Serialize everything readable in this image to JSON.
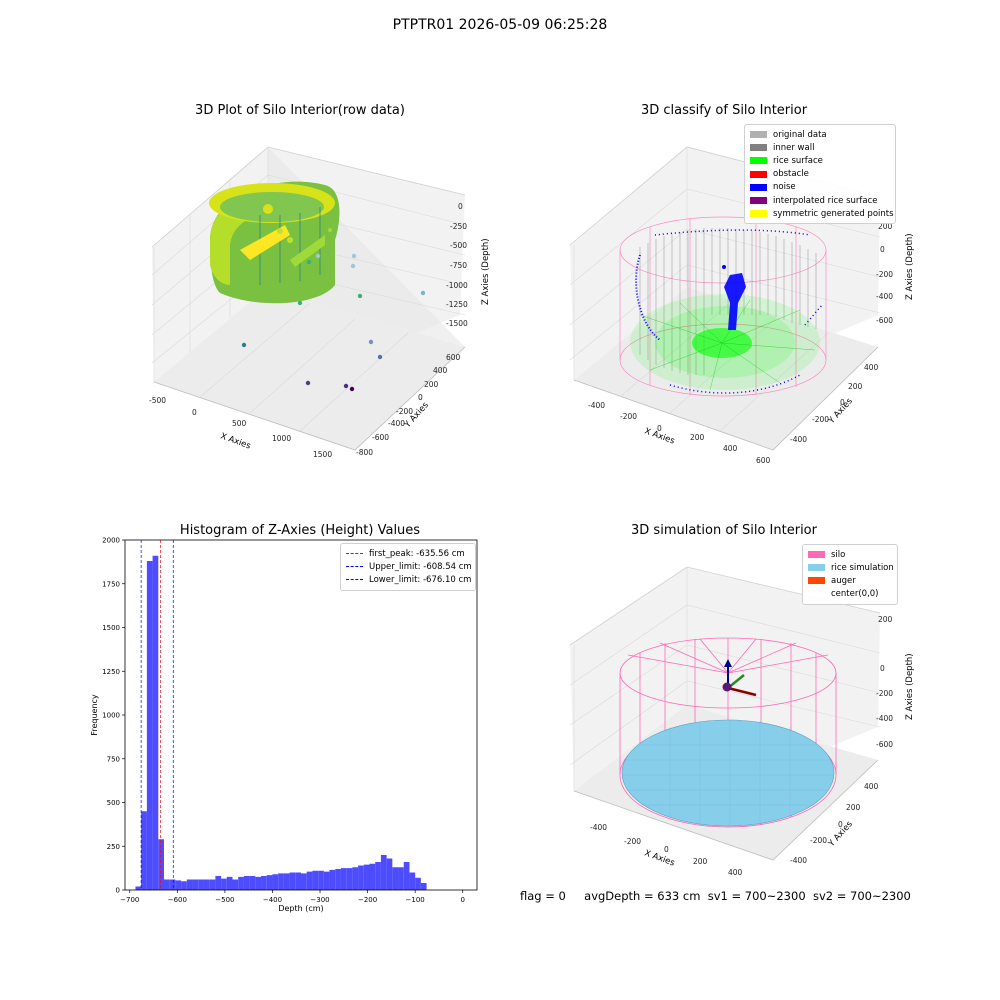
{
  "suptitle": "PTPTR01 2026-05-09 06:25:28",
  "colors": {
    "viridis_low": "#440154",
    "viridis_mid": "#21918c",
    "viridis_high": "#fde725",
    "pink": "#ff69b4",
    "green": "#00ff00",
    "blue": "#0000ff",
    "hist": "#4d4dff",
    "sky": "#87ceeb",
    "auger": "#ff4500"
  },
  "raw_plot": {
    "title": "3D Plot of Silo Interior(row data)",
    "x_label": "X Axies",
    "y_label": "Y Axies",
    "z_label": "Z Axies (Depth)",
    "x_ticks": [
      "-500",
      "0",
      "500",
      "1000",
      "1500"
    ],
    "y_ticks": [
      "600",
      "400",
      "200",
      "0",
      "-200",
      "-400",
      "-600",
      "-800"
    ],
    "z_ticks": [
      "0",
      "-250",
      "-500",
      "-750",
      "-1000",
      "-1250",
      "-1500"
    ]
  },
  "classify_plot": {
    "title": "3D classify of Silo Interior",
    "x_label": "X Axies",
    "y_label": "Y Axies",
    "z_label": "Z Axies (Depth)",
    "x_ticks": [
      "-400",
      "-200",
      "0",
      "200",
      "400",
      "600"
    ],
    "y_ticks": [
      "400",
      "200",
      "0",
      "-200",
      "-400"
    ],
    "z_ticks": [
      "200",
      "0",
      "-200",
      "-400",
      "-600"
    ],
    "legend": [
      {
        "label": "original data",
        "color": "#b0b0b0"
      },
      {
        "label": "inner wall",
        "color": "#808080"
      },
      {
        "label": "rice surface",
        "color": "#00ff00"
      },
      {
        "label": "obstacle",
        "color": "#ff0000"
      },
      {
        "label": "noise",
        "color": "#0000ff"
      },
      {
        "label": "interpolated rice surface",
        "color": "#800080"
      },
      {
        "label": "symmetric generated points",
        "color": "#ffff00"
      }
    ]
  },
  "chart_data": {
    "type": "bar",
    "title": "Histogram of Z-Axies (Height) Values",
    "xlabel": "Depth (cm)",
    "ylabel": "Frequency",
    "xlim": [
      -710,
      30
    ],
    "ylim": [
      0,
      2000
    ],
    "x_ticks": [
      -700,
      -600,
      -500,
      -400,
      -300,
      -200,
      -100,
      0
    ],
    "y_ticks": [
      0,
      250,
      500,
      750,
      1000,
      1250,
      1500,
      1750,
      2000
    ],
    "bin_width": 12,
    "bin_starts": [
      -688,
      -676,
      -664,
      -652,
      -640,
      -628,
      -616,
      -604,
      -592,
      -580,
      -568,
      -556,
      -544,
      -532,
      -520,
      -508,
      -496,
      -484,
      -472,
      -460,
      -448,
      -436,
      -424,
      -412,
      -400,
      -388,
      -376,
      -364,
      -352,
      -340,
      -328,
      -316,
      -304,
      -292,
      -280,
      -268,
      -256,
      -244,
      -232,
      -220,
      -208,
      -196,
      -184,
      -172,
      -160,
      -148,
      -136,
      -124,
      -112,
      -100,
      -88,
      -76,
      -64,
      -52,
      -40,
      -28,
      -16
    ],
    "values": [
      20,
      450,
      1880,
      1910,
      290,
      60,
      60,
      55,
      50,
      60,
      60,
      60,
      60,
      60,
      80,
      65,
      75,
      60,
      75,
      80,
      80,
      75,
      80,
      85,
      90,
      95,
      95,
      100,
      100,
      95,
      105,
      110,
      110,
      105,
      115,
      120,
      125,
      125,
      130,
      140,
      145,
      150,
      160,
      200,
      180,
      130,
      130,
      160,
      100,
      70,
      40,
      0,
      0,
      0,
      0,
      0,
      0
    ],
    "vlines": [
      {
        "label": "first_peak: -635.56 cm",
        "value": -635.56,
        "color": "#ff0000"
      },
      {
        "label": "Upper_limit: -608.54 cm",
        "value": -608.54,
        "color": "#0000ff"
      },
      {
        "label": "Lower_limit: -676.10 cm",
        "value": -676.1,
        "color": "#0000ff"
      }
    ]
  },
  "sim_plot": {
    "title": "3D simulation of Silo Interior",
    "x_label": "X Axies",
    "y_label": "Y Axies",
    "z_label": "Z Axies (Depth)",
    "x_ticks": [
      "-400",
      "-200",
      "0",
      "200",
      "400"
    ],
    "y_ticks": [
      "400",
      "200",
      "0",
      "-200",
      "-400"
    ],
    "z_ticks": [
      "200",
      "0",
      "-200",
      "-400",
      "-600"
    ],
    "legend": [
      {
        "label": "silo",
        "color": "#ff69b4"
      },
      {
        "label": "rice simulation",
        "color": "#87ceeb"
      },
      {
        "label": "auger",
        "color": "#ff4500"
      },
      {
        "label": "center(0,0)",
        "color": ""
      }
    ]
  },
  "status": {
    "flag": "flag = 0",
    "avg_depth": "avgDepth = 633 cm",
    "sv1": "sv1 = 700~2300",
    "sv2": "sv2 = 700~2300"
  }
}
